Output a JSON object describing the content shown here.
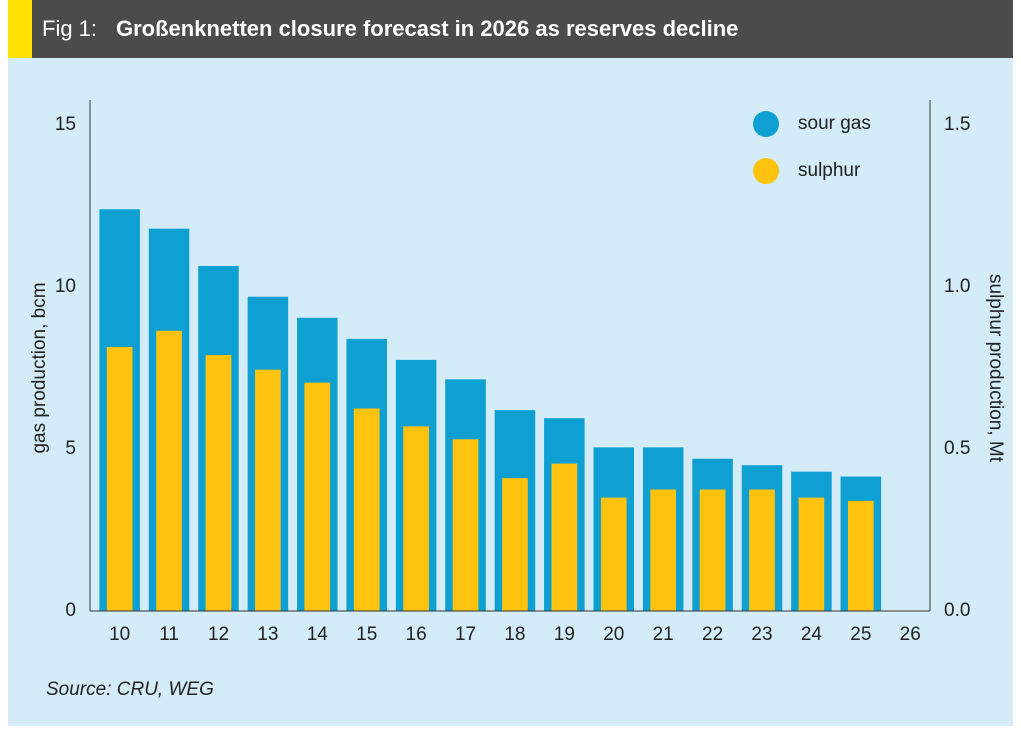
{
  "chart_data": {
    "type": "bar",
    "fig_label": "Fig 1:",
    "title": "Großenknetten closure forecast in 2026 as reserves decline",
    "source": "Source: CRU, WEG",
    "y_label": "gas production, bcm",
    "y2_label": "sulphur production, Mt",
    "categories": [
      "10",
      "11",
      "12",
      "13",
      "14",
      "15",
      "16",
      "17",
      "18",
      "19",
      "20",
      "21",
      "22",
      "23",
      "24",
      "25",
      "26"
    ],
    "series": [
      {
        "name": "sour gas",
        "color": "#0e9fd3",
        "values": [
          12.4,
          11.8,
          10.65,
          9.7,
          9.05,
          8.4,
          7.75,
          7.15,
          6.2,
          5.95,
          5.05,
          5.05,
          4.7,
          4.5,
          4.3,
          4.15,
          null
        ]
      },
      {
        "name": "sulphur",
        "color": "#ffc20e",
        "axis": "y2",
        "values": [
          0.815,
          0.865,
          0.79,
          0.745,
          0.705,
          0.625,
          0.57,
          0.53,
          0.41,
          0.455,
          0.35,
          0.375,
          0.375,
          0.375,
          0.35,
          0.34,
          null
        ]
      }
    ],
    "ylim": [
      0,
      15
    ],
    "yticks": [
      0,
      5,
      10,
      15
    ],
    "y2lim": [
      0,
      1.5
    ],
    "y2ticks": [
      {
        "value": 0,
        "label": "0.0"
      },
      0.5,
      {
        "value": 1,
        "label": "1.0"
      },
      1.5
    ],
    "legend": "top-right"
  }
}
